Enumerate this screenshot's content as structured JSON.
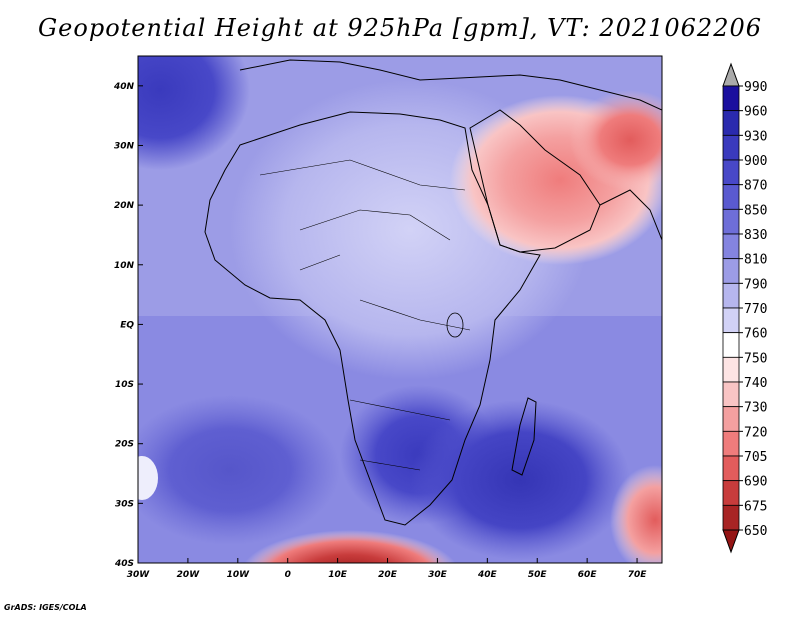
{
  "title": "Geopotential Height at 925hPa [gpm], VT: 2021062206",
  "credit": "GrADS: IGES/COLA",
  "map": {
    "variable": "Geopotential Height",
    "level": "925hPa",
    "units": "gpm",
    "valid_time": "2021062206",
    "lon_range": [
      -30,
      75
    ],
    "lat_range": [
      -40,
      45
    ],
    "lon_ticks": [
      {
        "value": -30,
        "label": "30W"
      },
      {
        "value": -20,
        "label": "20W"
      },
      {
        "value": -10,
        "label": "10W"
      },
      {
        "value": 0,
        "label": "0"
      },
      {
        "value": 10,
        "label": "10E"
      },
      {
        "value": 20,
        "label": "20E"
      },
      {
        "value": 30,
        "label": "30E"
      },
      {
        "value": 40,
        "label": "40E"
      },
      {
        "value": 50,
        "label": "50E"
      },
      {
        "value": 60,
        "label": "60E"
      },
      {
        "value": 70,
        "label": "70E"
      }
    ],
    "lat_ticks": [
      {
        "value": 40,
        "label": "40N"
      },
      {
        "value": 30,
        "label": "30N"
      },
      {
        "value": 20,
        "label": "20N"
      },
      {
        "value": 10,
        "label": "10N"
      },
      {
        "value": 0,
        "label": "EQ"
      },
      {
        "value": -10,
        "label": "10S"
      },
      {
        "value": -20,
        "label": "20S"
      },
      {
        "value": -30,
        "label": "30S"
      },
      {
        "value": -40,
        "label": "40S"
      }
    ]
  },
  "colorbar": {
    "labels": [
      "990",
      "960",
      "930",
      "900",
      "870",
      "850",
      "830",
      "810",
      "790",
      "770",
      "760",
      "750",
      "740",
      "730",
      "720",
      "705",
      "690",
      "675",
      "650"
    ],
    "colors": [
      "#aaaaaa",
      "#1a0f9e",
      "#2a2aae",
      "#3a3abd",
      "#4848c8",
      "#5a5ad0",
      "#6e6ed8",
      "#8484e0",
      "#9c9ce6",
      "#b6b6ee",
      "#d2d2f6",
      "#ffffff",
      "#fde4e4",
      "#f9c4c4",
      "#f4a0a0",
      "#ef7c7c",
      "#e25c5c",
      "#c83c3c",
      "#a82424",
      "#941414"
    ]
  },
  "regions": [
    {
      "lon": [
        -30,
        -18
      ],
      "lat": [
        34,
        45
      ],
      "value": 900
    },
    {
      "lon": [
        -30,
        -14
      ],
      "lat": [
        25,
        34
      ],
      "value": 850
    },
    {
      "lon": [
        15,
        20
      ],
      "lat": [
        27,
        33
      ],
      "value": 830
    },
    {
      "lon": [
        2,
        10
      ],
      "lat": [
        17,
        27
      ],
      "value": 810
    },
    {
      "lon": [
        35,
        47
      ],
      "lat": [
        15,
        27
      ],
      "value": 750
    },
    {
      "lon": [
        46,
        58
      ],
      "lat": [
        18,
        27
      ],
      "value": 730
    },
    {
      "lon": [
        60,
        75
      ],
      "lat": [
        25,
        33
      ],
      "value": 720
    },
    {
      "lon": [
        48,
        60
      ],
      "lat": [
        30,
        37
      ],
      "value": 750
    },
    {
      "lon": [
        24,
        34
      ],
      "lat": [
        -28,
        -18
      ],
      "value": 900
    },
    {
      "lon": [
        40,
        58
      ],
      "lat": [
        -38,
        -25
      ],
      "value": 900
    },
    {
      "lon": [
        -15,
        0
      ],
      "lat": [
        -28,
        -18
      ],
      "value": 850
    },
    {
      "lon": [
        0,
        35
      ],
      "lat": [
        -41,
        -38
      ],
      "value": 675
    }
  ]
}
